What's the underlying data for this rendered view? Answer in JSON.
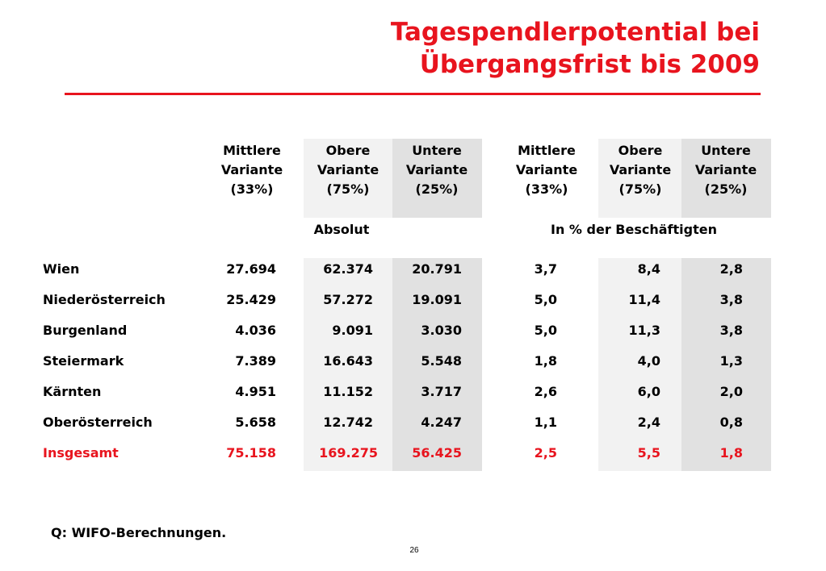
{
  "title_line1": "Tagespendlerpotential bei",
  "title_line2": "Übergangsfrist bis 2009",
  "columns": [
    {
      "line1": "Mittlere",
      "line2": "Variante",
      "line3": "(33%)"
    },
    {
      "line1": "Obere",
      "line2": "Variante",
      "line3": "(75%)"
    },
    {
      "line1": "Untere",
      "line2": "Variante",
      "line3": "(25%)"
    },
    {
      "line1": "Mittlere",
      "line2": "Variante",
      "line3": "(33%)"
    },
    {
      "line1": "Obere",
      "line2": "Variante",
      "line3": "(75%)"
    },
    {
      "line1": "Untere",
      "line2": "Variante",
      "line3": "(25%)"
    }
  ],
  "group_absolute": "Absolut",
  "group_percent": "In % der Beschäftigten",
  "rows": [
    {
      "name": "Wien",
      "values": [
        "27.694",
        "62.374",
        "20.791",
        "3,7",
        "8,4",
        "2,8"
      ]
    },
    {
      "name": "Niederösterreich",
      "values": [
        "25.429",
        "57.272",
        "19.091",
        "5,0",
        "11,4",
        "3,8"
      ]
    },
    {
      "name": "Burgenland",
      "values": [
        "4.036",
        "9.091",
        "3.030",
        "5,0",
        "11,3",
        "3,8"
      ]
    },
    {
      "name": "Steiermark",
      "values": [
        "7.389",
        "16.643",
        "5.548",
        "1,8",
        "4,0",
        "1,3"
      ]
    },
    {
      "name": "Kärnten",
      "values": [
        "4.951",
        "11.152",
        "3.717",
        "2,6",
        "6,0",
        "2,0"
      ]
    },
    {
      "name": "Oberösterreich",
      "values": [
        "5.658",
        "12.742",
        "4.247",
        "1,1",
        "2,4",
        "0,8"
      ]
    }
  ],
  "total": {
    "name": "Insgesamt",
    "values": [
      "75.158",
      "169.275",
      "56.425",
      "2,5",
      "5,5",
      "1,8"
    ]
  },
  "source": "Q: WIFO-Berechnungen.",
  "page_number": "26",
  "colors": {
    "accent": "#e8141e",
    "shade_light": "#f2f2f2",
    "shade_dark": "#e1e1e1"
  }
}
